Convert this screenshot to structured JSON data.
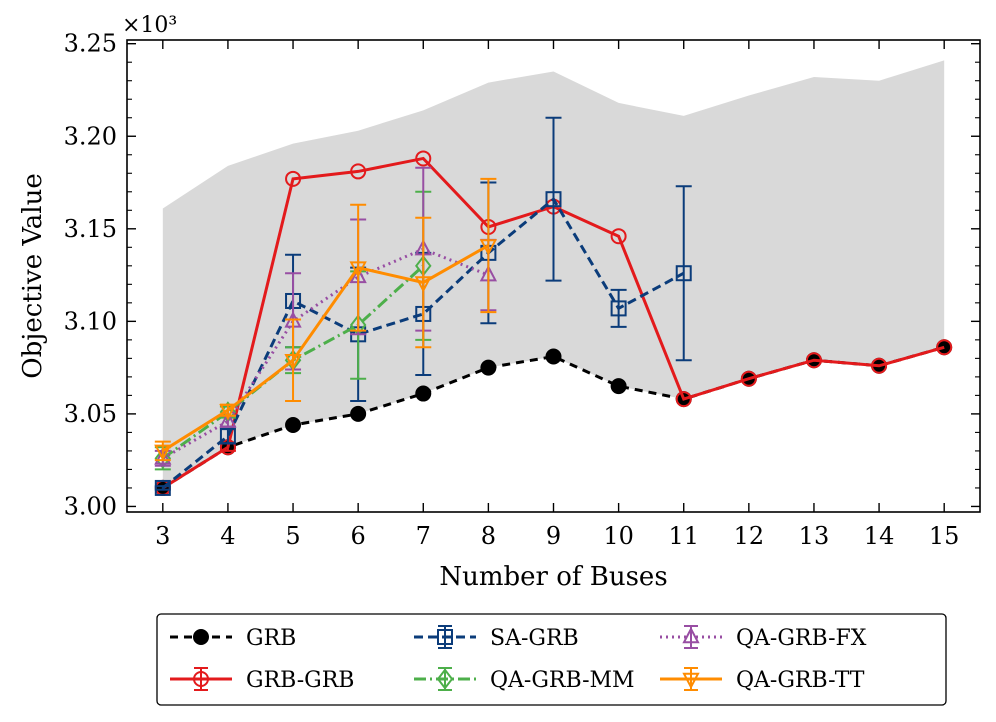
{
  "colors": {
    "grb": "#000000",
    "grb_grb": "#e31a1c",
    "sa_grb": "#0b3c7a",
    "qa_grb_mm": "#4daf4a",
    "qa_grb_fx": "#984ea3",
    "qa_grb_tt": "#ff8c00",
    "band": "#d9d9d9"
  },
  "chart_data": {
    "type": "line",
    "title": "",
    "xlabel": "Number of Buses",
    "ylabel": "Objective Value",
    "y_scale_label": "×10³",
    "xlim": [
      2.45,
      15.55
    ],
    "ylim": [
      2.997,
      3.252
    ],
    "xticks": [
      3,
      4,
      5,
      6,
      7,
      8,
      9,
      10,
      11,
      12,
      13,
      14,
      15
    ],
    "yticks": [
      3.0,
      3.05,
      3.1,
      3.15,
      3.2,
      3.25
    ],
    "ytick_labels": [
      "3.00",
      "3.05",
      "3.10",
      "3.15",
      "3.20",
      "3.25"
    ],
    "grid": false,
    "legend_position": "bottom-outside",
    "band": {
      "x": [
        3,
        4,
        5,
        6,
        7,
        8,
        9,
        10,
        11,
        12,
        13,
        14,
        15
      ],
      "lower": [
        3.01,
        3.032,
        3.044,
        3.05,
        3.061,
        3.075,
        3.081,
        3.065,
        3.058,
        3.069,
        3.079,
        3.076,
        3.086
      ],
      "upper": [
        3.161,
        3.184,
        3.196,
        3.203,
        3.214,
        3.229,
        3.235,
        3.218,
        3.211,
        3.222,
        3.232,
        3.23,
        3.241
      ]
    },
    "series": [
      {
        "key": "grb",
        "name": "GRB",
        "color_key": "grb",
        "dash": "8,6",
        "marker": "circle-filled",
        "x": [
          3,
          4,
          5,
          6,
          7,
          8,
          9,
          10,
          11,
          12,
          13,
          14,
          15
        ],
        "y": [
          3.01,
          3.032,
          3.044,
          3.05,
          3.061,
          3.075,
          3.081,
          3.065,
          3.058,
          3.069,
          3.079,
          3.076,
          3.086
        ],
        "err": [
          0,
          0,
          0,
          0,
          0,
          0,
          0,
          0,
          0,
          0,
          0,
          0,
          0
        ]
      },
      {
        "key": "grb_grb",
        "name": "GRB-GRB",
        "color_key": "grb_grb",
        "dash": "",
        "marker": "circle-open",
        "x": [
          3,
          4,
          5,
          6,
          7,
          8,
          9,
          10,
          11,
          12,
          13,
          14,
          15
        ],
        "y": [
          3.01,
          3.032,
          3.177,
          3.181,
          3.188,
          3.151,
          3.162,
          3.146,
          3.058,
          3.069,
          3.079,
          3.076,
          3.086
        ],
        "err": [
          0,
          0.002,
          0,
          0,
          0,
          0,
          0,
          0,
          0,
          0,
          0,
          0,
          0
        ]
      },
      {
        "key": "sa_grb",
        "name": "SA-GRB",
        "color_key": "sa_grb",
        "dash": "9,5",
        "marker": "square-open",
        "x": [
          3,
          4,
          5,
          6,
          7,
          8,
          9,
          10,
          11
        ],
        "y": [
          3.01,
          3.038,
          3.111,
          3.093,
          3.104,
          3.137,
          3.166,
          3.107,
          3.126
        ],
        "err": [
          0.001,
          0.004,
          0.025,
          0.036,
          0.033,
          0.038,
          0.044,
          0.01,
          0.047
        ]
      },
      {
        "key": "qa_grb_mm",
        "name": "QA-GRB-MM",
        "color_key": "qa_grb_mm",
        "dash": "12,4,2,4",
        "marker": "diamond-open",
        "x": [
          3,
          4,
          5,
          6,
          7
        ],
        "y": [
          3.026,
          3.051,
          3.079,
          3.098,
          3.13
        ],
        "err": [
          0.006,
          0.003,
          0.007,
          0.029,
          0.04
        ]
      },
      {
        "key": "qa_grb_fx",
        "name": "QA-GRB-FX",
        "color_key": "qa_grb_fx",
        "dash": "2,4",
        "marker": "triangle-up-open",
        "x": [
          3,
          4,
          5,
          6,
          7,
          8
        ],
        "y": [
          3.026,
          3.046,
          3.1,
          3.124,
          3.139,
          3.125
        ],
        "err": [
          0.004,
          0.003,
          0.026,
          0.031,
          0.044,
          0.019
        ]
      },
      {
        "key": "qa_grb_tt",
        "name": "QA-GRB-TT",
        "color_key": "qa_grb_tt",
        "dash": "",
        "marker": "triangle-down-open",
        "x": [
          3,
          4,
          5,
          6,
          7,
          8
        ],
        "y": [
          3.03,
          3.052,
          3.079,
          3.129,
          3.121,
          3.141
        ],
        "err": [
          0.005,
          0.003,
          0.022,
          0.034,
          0.035,
          0.036
        ]
      }
    ],
    "legend": [
      {
        "label": "GRB",
        "series": "grb"
      },
      {
        "label": "SA-GRB",
        "series": "sa_grb"
      },
      {
        "label": "QA-GRB-FX",
        "series": "qa_grb_fx"
      },
      {
        "label": "GRB-GRB",
        "series": "grb_grb"
      },
      {
        "label": "QA-GRB-MM",
        "series": "qa_grb_mm"
      },
      {
        "label": "QA-GRB-TT",
        "series": "qa_grb_tt"
      }
    ]
  }
}
